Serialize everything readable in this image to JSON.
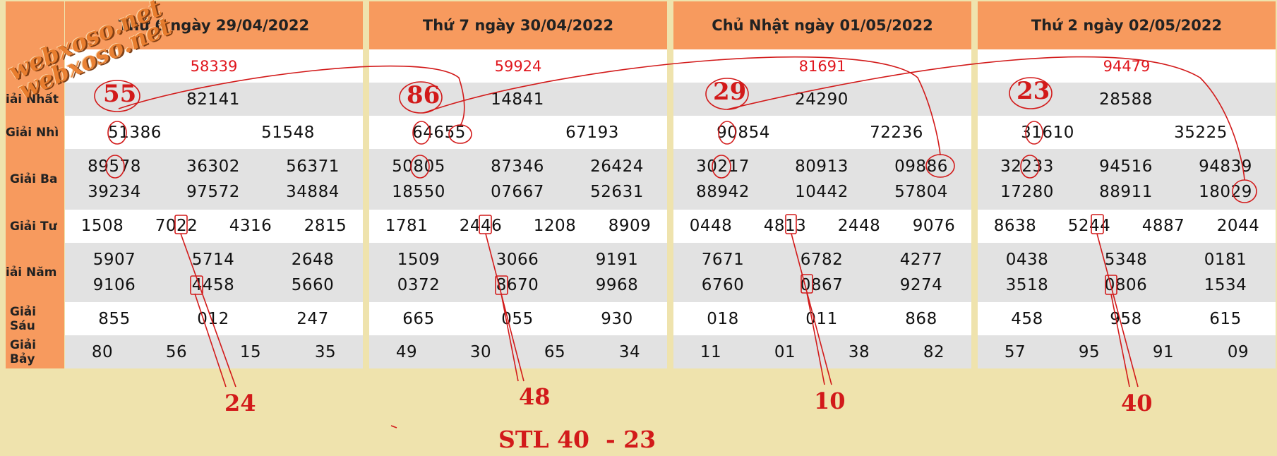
{
  "watermark": "webxoso.net",
  "row_labels": [
    "iải Nhất",
    "Giải Nhì",
    "Giải Ba",
    "Giải Tư",
    "iải Năm",
    "Giải Sáu",
    "Giải Bảy"
  ],
  "days": [
    {
      "header": "Thứ 6 ngày 29/04/2022",
      "db": "58339",
      "nhat": "82141",
      "nhi": [
        "51386",
        "51548"
      ],
      "ba": [
        "89578",
        "36302",
        "56371",
        "39234",
        "97572",
        "34884"
      ],
      "tu": [
        "1508",
        "7022",
        "4316",
        "2815"
      ],
      "nam": [
        "5907",
        "5714",
        "2648",
        "9106",
        "4458",
        "5660"
      ],
      "sau": [
        "855",
        "012",
        "247"
      ],
      "bay": [
        "80",
        "56",
        "15",
        "35"
      ],
      "circled": "55",
      "result": "24"
    },
    {
      "header": "Thứ 7 ngày 30/04/2022",
      "db": "59924",
      "nhat": "14841",
      "nhi": [
        "64655",
        "67193"
      ],
      "ba": [
        "50805",
        "87346",
        "26424",
        "18550",
        "07667",
        "52631"
      ],
      "tu": [
        "1781",
        "2446",
        "1208",
        "8909"
      ],
      "nam": [
        "1509",
        "3066",
        "9191",
        "0372",
        "8670",
        "9968"
      ],
      "sau": [
        "665",
        "055",
        "930"
      ],
      "bay": [
        "49",
        "30",
        "65",
        "34"
      ],
      "circled": "86",
      "result": "48"
    },
    {
      "header": "Chủ Nhật ngày 01/05/2022",
      "db": "81691",
      "nhat": "24290",
      "nhi": [
        "90854",
        "72236"
      ],
      "ba": [
        "30217",
        "80913",
        "09886",
        "88942",
        "10442",
        "57804"
      ],
      "tu": [
        "0448",
        "4813",
        "2448",
        "9076"
      ],
      "nam": [
        "7671",
        "6782",
        "4277",
        "6760",
        "0867",
        "9274"
      ],
      "sau": [
        "018",
        "011",
        "868"
      ],
      "bay": [
        "11",
        "01",
        "38",
        "82"
      ],
      "circled": "29",
      "result": "10"
    },
    {
      "header": "Thứ 2 ngày 02/05/2022",
      "db": "94479",
      "nhat": "28588",
      "nhi": [
        "31610",
        "35225"
      ],
      "ba": [
        "32233",
        "94516",
        "94839",
        "17280",
        "88911",
        "18029"
      ],
      "tu": [
        "8638",
        "5244",
        "4887",
        "2044"
      ],
      "nam": [
        "0438",
        "5348",
        "0181",
        "3518",
        "0806",
        "1534"
      ],
      "sau": [
        "458",
        "958",
        "615"
      ],
      "bay": [
        "57",
        "95",
        "91",
        "09"
      ],
      "circled": "23",
      "result": "40"
    }
  ],
  "stl": "STL 40  - 23",
  "colors": {
    "header": "#f79a5e",
    "background": "#efe3ad",
    "red": "#d21a1a",
    "db": "#e0161d"
  }
}
